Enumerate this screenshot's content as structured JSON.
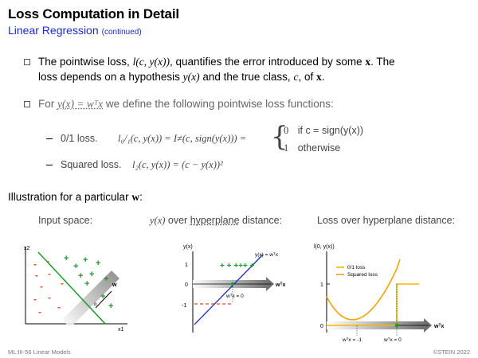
{
  "slide": {
    "title": "Loss Computation in Detail",
    "subtitle": "Linear Regression",
    "subtitle_note": "(continued)"
  },
  "bullets": [
    {
      "t1": "The pointwise loss, ",
      "m1": "l(c, y(x))",
      "t2": ", quantifies the error introduced by some ",
      "m2": "x",
      "t3": ". The",
      "l2a": "loss depends on a hypothesis ",
      "m3": "y(x)",
      "l2b": " and the true class, ",
      "m4": "c",
      "l2c": ", of ",
      "m5": "x",
      "l2d": "."
    },
    {
      "t1": "For ",
      "m1": "y(x) = wᵀx",
      "t2": " we define the following pointwise loss functions:"
    }
  ],
  "losses": {
    "l01_label": "0/1 loss.",
    "l01_formula": "l₀/₁(c, y(x))  =  I≠(c, sign(y(x)))  =",
    "case1_val": "0",
    "case1_cond": "if c = sign(y(x))",
    "case2_val": "1",
    "case2_cond": "otherwise",
    "sq_label": "Squared loss.",
    "sq_formula": "l₂(c, y(x))  =  (c − y(x))²"
  },
  "illustration": {
    "heading": "Illustration for a particular ",
    "heading_math": "w",
    "heading_end": ":",
    "captions": {
      "input_space": "Input space:",
      "yx_prefix": "y(x)",
      "yx_mid": " over ",
      "yx_link": "hyperplane",
      "yx_suffix": " distance:",
      "loss": "Loss over hyperplane distance:"
    }
  },
  "panel1": {
    "x2_label": "x2",
    "x1_label": "x1",
    "w_label": "w",
    "plus_sign": "+",
    "minus_sign": "-",
    "angle_label": "α"
  },
  "panel2": {
    "y_label": "y(x)",
    "tick_1": "1",
    "tick_0": "0",
    "tick_m1": "-1",
    "line_label": "y(x) = wᵀx",
    "x_label": "wᵀx",
    "zero_label": "wᵀx = 0",
    "plus_row": "+ + +++ +",
    "minus_row": "- - - - -"
  },
  "panel3": {
    "y_label": "l(0, y(x))",
    "tick_1": "1",
    "tick_0": "0",
    "x_label": "wᵀx",
    "legend_01": "0/1 loss",
    "legend_sq": "Squared loss",
    "xtick_m1": "wᵀx = -1",
    "xtick_0": "wᵀx = 0",
    "colors": {
      "zero_one": "#f5b800",
      "squared": "#f2a400"
    }
  },
  "footer": {
    "left": "ML:III-56   Linear Models",
    "right": "©STEIN 2022"
  }
}
